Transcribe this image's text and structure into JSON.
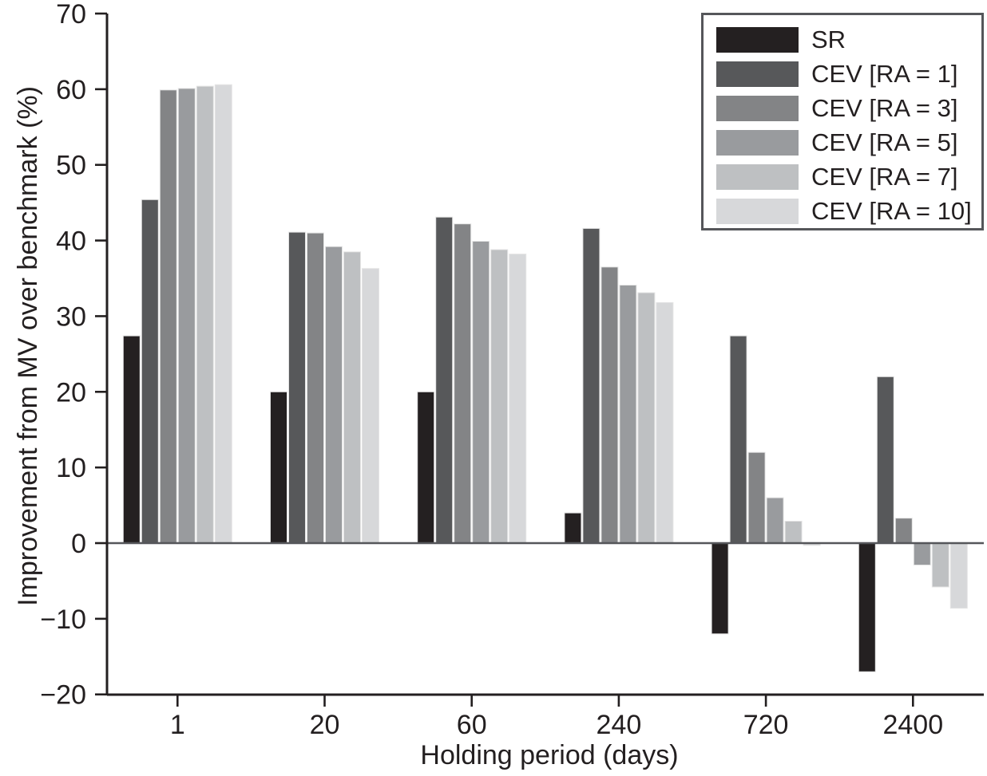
{
  "chart_data": {
    "type": "bar",
    "title": "",
    "xlabel": "Holding period (days)",
    "ylabel": "Improvement from MV over benchmark (%)",
    "categories": [
      "1",
      "20",
      "60",
      "240",
      "720",
      "2400"
    ],
    "ylim": [
      -20,
      70
    ],
    "y_ticks": [
      {
        "value": 70,
        "label": "70"
      },
      {
        "value": 60,
        "label": "60"
      },
      {
        "value": 50,
        "label": "50"
      },
      {
        "value": 40,
        "label": "40"
      },
      {
        "value": 30,
        "label": "30"
      },
      {
        "value": 20,
        "label": "20"
      },
      {
        "value": 10,
        "label": "10"
      },
      {
        "value": 0,
        "label": "0"
      },
      {
        "value": -10,
        "label": "−10"
      },
      {
        "value": -20,
        "label": "−20"
      }
    ],
    "grid": false,
    "legend_position": "top-right",
    "series": [
      {
        "name": "SR",
        "color": "#242021",
        "values": [
          27.4,
          20.0,
          20.0,
          4.0,
          -12.0,
          -17.0
        ]
      },
      {
        "name": "CEV [RA = 1]",
        "color": "#57585a",
        "values": [
          45.4,
          41.1,
          43.1,
          41.6,
          27.4,
          22.0
        ]
      },
      {
        "name": "CEV [RA = 3]",
        "color": "#838486",
        "values": [
          59.9,
          41.0,
          42.2,
          36.5,
          12.0,
          3.3
        ]
      },
      {
        "name": "CEV [RA = 5]",
        "color": "#999b9e",
        "values": [
          60.1,
          39.2,
          39.9,
          34.1,
          6.0,
          -2.9
        ]
      },
      {
        "name": "CEV [RA = 7]",
        "color": "#bec0c2",
        "values": [
          60.4,
          38.5,
          38.8,
          33.1,
          2.9,
          -5.8
        ]
      },
      {
        "name": "CEV [RA = 10]",
        "color": "#d7d8da",
        "values": [
          60.6,
          36.3,
          38.2,
          31.8,
          -0.3,
          -8.6
        ]
      }
    ]
  },
  "colors": {
    "axis": "#231f20",
    "zero_line": "#55565a",
    "bar_edge": "#e4e4e4",
    "text": "#231f20",
    "legend_border": "#55565a",
    "background": "#ffffff"
  }
}
